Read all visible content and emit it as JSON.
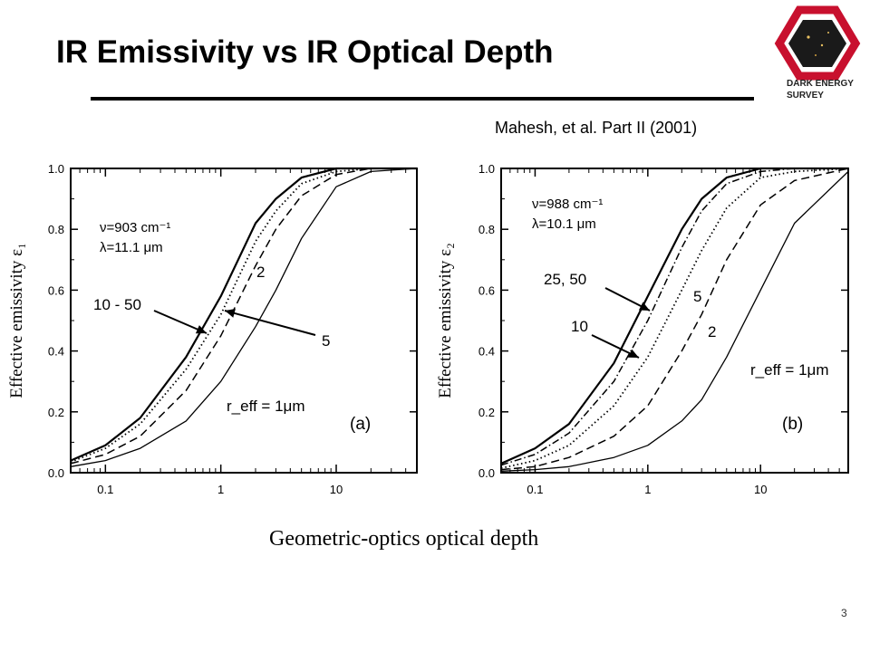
{
  "slide": {
    "title": "IR Emissivity vs IR Optical Depth",
    "citation": "Mahesh, et al. Part II (2001)",
    "page_number": "3",
    "logo_text": [
      "DARK ENERGY",
      "SURVEY"
    ]
  },
  "colors": {
    "text": "#000000",
    "logo_red": "#c8102e",
    "logo_dark": "#1a1a1a",
    "background": "#ffffff"
  },
  "chart_data": [
    {
      "type": "line",
      "panel_label": "(a)",
      "xlabel": "Geometric-optics optical depth",
      "ylabel": "Effective emissivity ε₁",
      "x_scale": "log",
      "xlim": [
        0.05,
        50
      ],
      "ylim": [
        0,
        1.0
      ],
      "x_ticks": [
        "0.1",
        "1",
        "10"
      ],
      "y_ticks": [
        "0.0",
        "0.2",
        "0.4",
        "0.6",
        "0.8",
        "1.0"
      ],
      "info_lines": [
        "ν=903 cm⁻¹",
        "λ=11.1 μm"
      ],
      "annotations": [
        "10 - 50",
        "2",
        "5",
        "r_eff = 1μm"
      ],
      "series": [
        {
          "name": "10 - 50",
          "x": [
            0.05,
            0.1,
            0.2,
            0.5,
            1,
            2,
            3,
            5,
            10,
            20,
            50
          ],
          "y": [
            0.04,
            0.09,
            0.18,
            0.38,
            0.58,
            0.82,
            0.9,
            0.97,
            1.0,
            1.0,
            1.0
          ],
          "dash": "solid-bold"
        },
        {
          "name": "5",
          "x": [
            0.05,
            0.1,
            0.2,
            0.5,
            1,
            2,
            3,
            5,
            10,
            20,
            50
          ],
          "y": [
            0.035,
            0.08,
            0.16,
            0.34,
            0.52,
            0.76,
            0.86,
            0.95,
            0.99,
            1.0,
            1.0
          ],
          "dash": "dotted"
        },
        {
          "name": "2",
          "x": [
            0.05,
            0.1,
            0.2,
            0.5,
            1,
            2,
            3,
            5,
            10,
            20,
            50
          ],
          "y": [
            0.03,
            0.06,
            0.12,
            0.27,
            0.45,
            0.68,
            0.8,
            0.91,
            0.98,
            1.0,
            1.0
          ],
          "dash": "dashed"
        },
        {
          "name": "r_eff = 1μm",
          "x": [
            0.05,
            0.1,
            0.2,
            0.5,
            1,
            2,
            3,
            5,
            10,
            20,
            50
          ],
          "y": [
            0.02,
            0.04,
            0.08,
            0.17,
            0.3,
            0.48,
            0.6,
            0.77,
            0.94,
            0.99,
            1.0
          ],
          "dash": "solid-thin"
        }
      ]
    },
    {
      "type": "line",
      "panel_label": "(b)",
      "xlabel": "Geometric-optics optical depth",
      "ylabel": "Effective emissivity ε₂",
      "x_scale": "log",
      "xlim": [
        0.05,
        60
      ],
      "ylim": [
        0,
        1.0
      ],
      "x_ticks": [
        "0.1",
        "1",
        "10"
      ],
      "y_ticks": [
        "0.0",
        "0.2",
        "0.4",
        "0.6",
        "0.8",
        "1.0"
      ],
      "info_lines": [
        "ν=988 cm⁻¹",
        "λ=10.1 μm"
      ],
      "annotations": [
        "25, 50",
        "10",
        "5",
        "2",
        "r_eff = 1μm"
      ],
      "series": [
        {
          "name": "25, 50",
          "x": [
            0.05,
            0.1,
            0.2,
            0.5,
            1,
            2,
            3,
            5,
            10,
            20,
            60
          ],
          "y": [
            0.03,
            0.08,
            0.16,
            0.36,
            0.58,
            0.8,
            0.9,
            0.97,
            1.0,
            1.0,
            1.0
          ],
          "dash": "solid-bold"
        },
        {
          "name": "10",
          "x": [
            0.05,
            0.1,
            0.2,
            0.5,
            1,
            2,
            3,
            5,
            10,
            20,
            60
          ],
          "y": [
            0.025,
            0.06,
            0.13,
            0.3,
            0.5,
            0.74,
            0.86,
            0.95,
            0.99,
            1.0,
            1.0
          ],
          "dash": "dashdot"
        },
        {
          "name": "5",
          "x": [
            0.05,
            0.1,
            0.2,
            0.5,
            1,
            2,
            3,
            5,
            10,
            20,
            60
          ],
          "y": [
            0.015,
            0.04,
            0.09,
            0.22,
            0.38,
            0.6,
            0.73,
            0.87,
            0.97,
            0.99,
            1.0
          ],
          "dash": "dotted"
        },
        {
          "name": "2",
          "x": [
            0.05,
            0.1,
            0.2,
            0.5,
            1,
            2,
            3,
            5,
            10,
            20,
            60
          ],
          "y": [
            0.01,
            0.02,
            0.05,
            0.12,
            0.22,
            0.4,
            0.52,
            0.7,
            0.88,
            0.96,
            1.0
          ],
          "dash": "dashed"
        },
        {
          "name": "r_eff = 1μm",
          "x": [
            0.05,
            0.1,
            0.2,
            0.5,
            1,
            2,
            3,
            5,
            10,
            20,
            60
          ],
          "y": [
            0.005,
            0.01,
            0.02,
            0.05,
            0.09,
            0.17,
            0.24,
            0.38,
            0.6,
            0.82,
            0.99
          ],
          "dash": "solid-thin"
        }
      ]
    }
  ]
}
